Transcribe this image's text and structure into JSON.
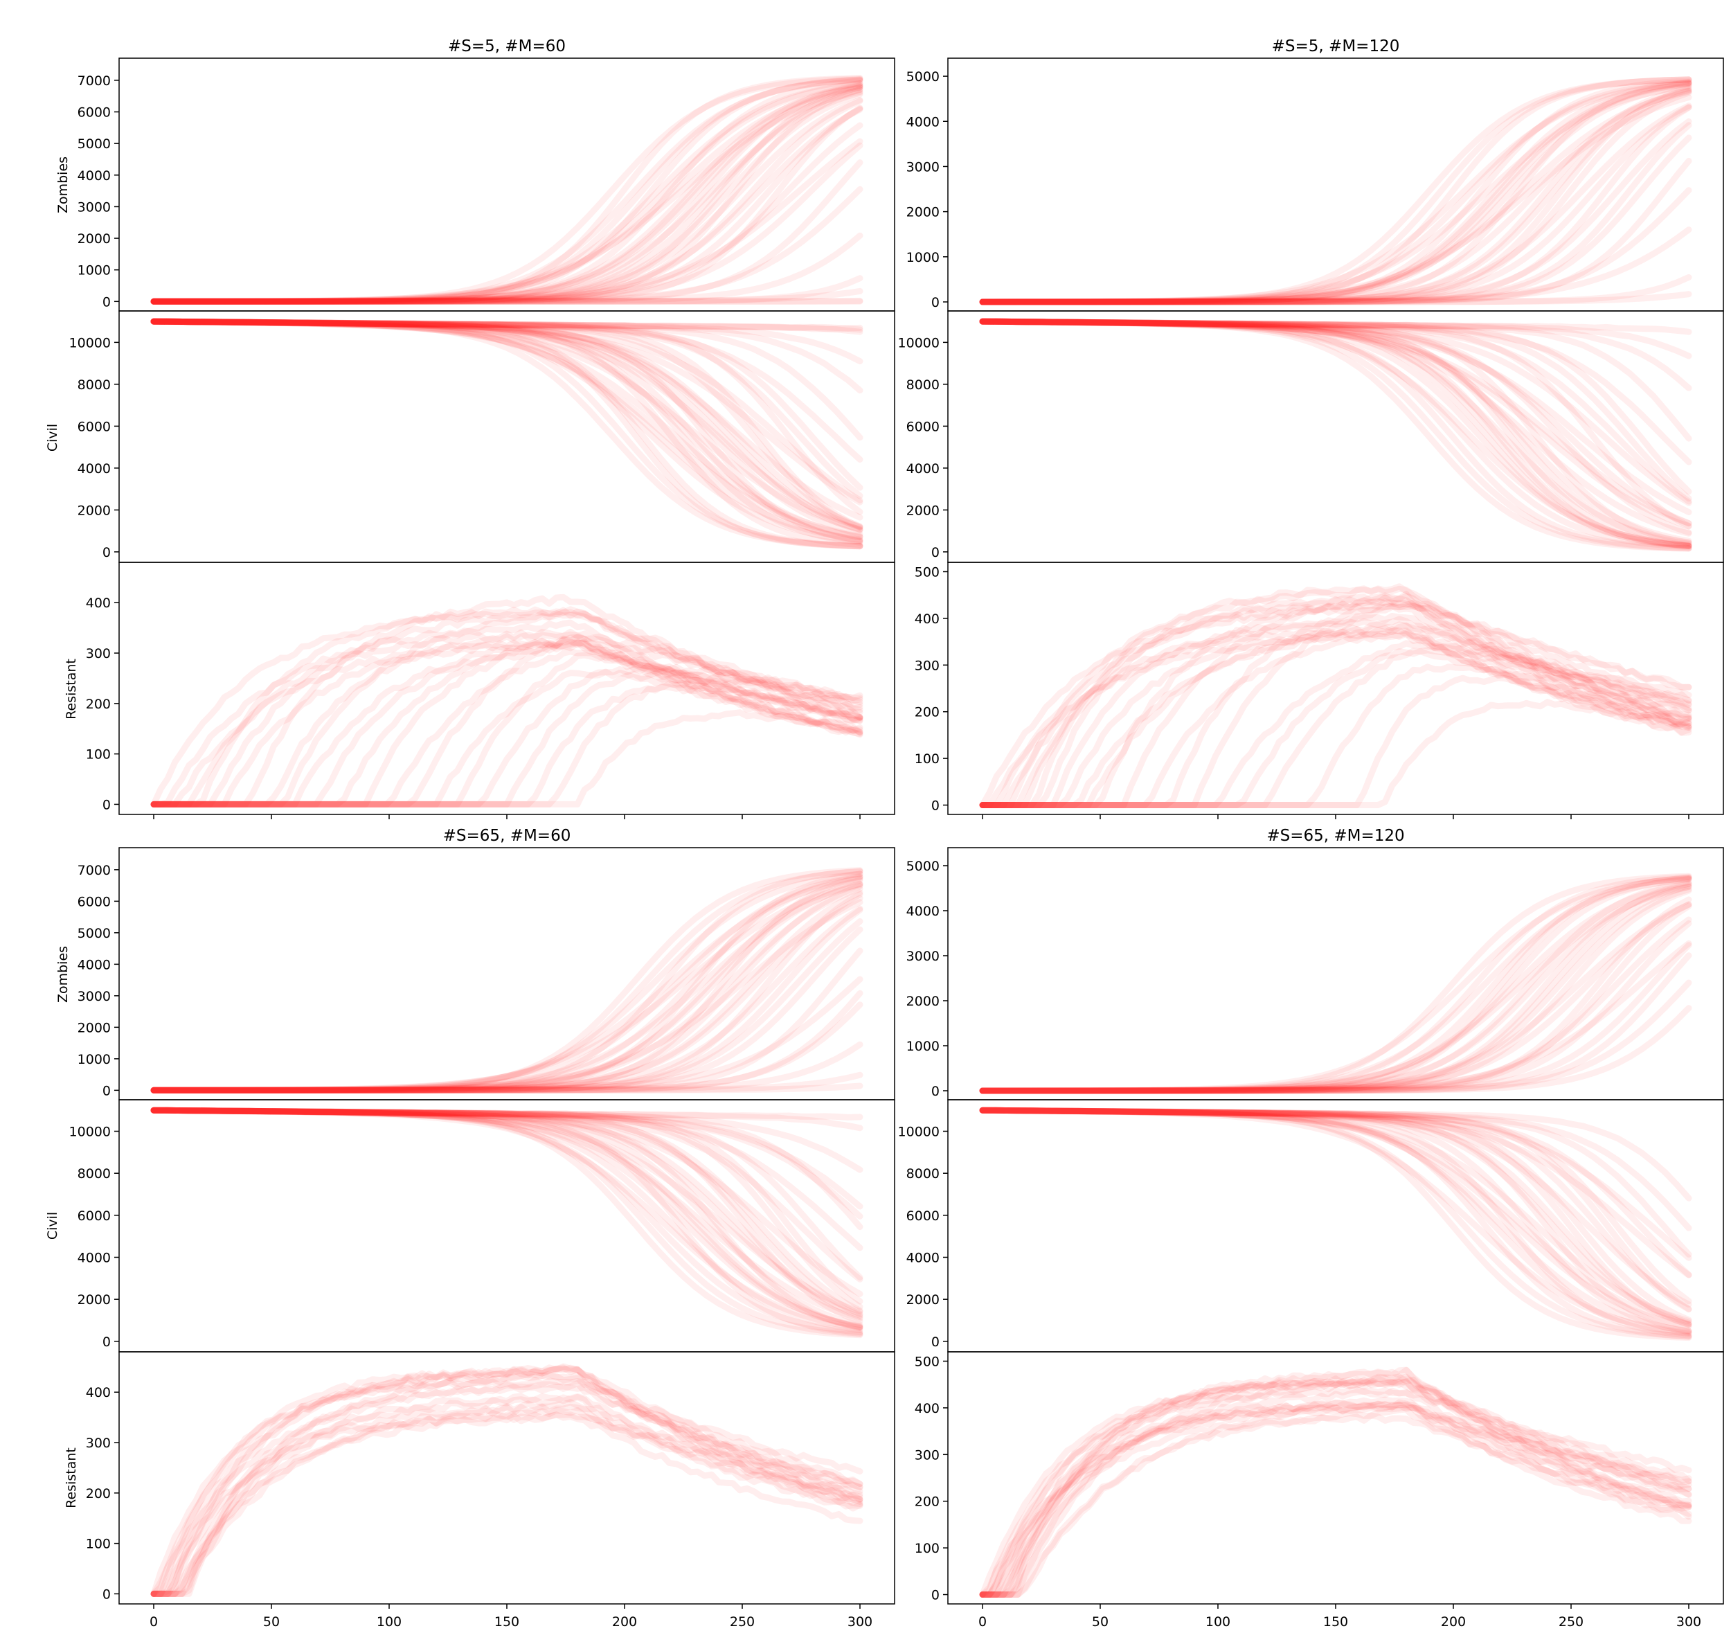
{
  "chart_data": [
    {
      "type": "line",
      "title": "#S=5, #M=60",
      "series_color": "#ff2020",
      "x_range": [
        0,
        300
      ],
      "x_ticks": [
        0,
        50,
        100,
        150,
        200,
        250,
        300
      ],
      "grid": false,
      "legend": "none",
      "panels": [
        {
          "ylabel": "Zombies",
          "ylim": [
            -300,
            7700
          ],
          "y_ticks": [
            0,
            1000,
            2000,
            3000,
            4000,
            5000,
            6000,
            7000
          ],
          "curve_kind": "rise",
          "plateau": 7100,
          "midpoints": [
            195,
            200,
            205,
            208,
            212,
            215,
            218,
            220,
            222,
            225,
            228,
            230,
            232,
            235,
            238,
            240,
            242,
            245,
            248,
            250,
            255,
            258,
            262,
            266,
            270,
            275,
            280,
            290,
            300,
            320,
            340,
            380,
            420,
            460
          ]
        },
        {
          "ylabel": "Civil",
          "ylim": [
            -500,
            11500
          ],
          "y_ticks": [
            0,
            2000,
            4000,
            6000,
            8000,
            10000
          ],
          "curve_kind": "fall",
          "start": 11000,
          "floor": 200,
          "midpoints": [
            195,
            200,
            205,
            208,
            212,
            215,
            218,
            220,
            222,
            225,
            228,
            230,
            232,
            235,
            238,
            240,
            242,
            245,
            248,
            250,
            255,
            258,
            262,
            266,
            270,
            275,
            280,
            290,
            300,
            320,
            340,
            380,
            420,
            460
          ]
        },
        {
          "ylabel": "Resistant",
          "ylim": [
            -20,
            480
          ],
          "y_ticks": [
            0,
            100,
            200,
            300,
            400
          ],
          "curve_kind": "hump",
          "peak": 380,
          "onsets": [
            0,
            5,
            10,
            15,
            20,
            25,
            30,
            40,
            50,
            55,
            60,
            70,
            80,
            90,
            100,
            110,
            120,
            130,
            140,
            150,
            160,
            170,
            180
          ]
        }
      ]
    },
    {
      "type": "line",
      "title": "#S=5, #M=120",
      "series_color": "#ff2020",
      "x_range": [
        0,
        300
      ],
      "x_ticks": [
        0,
        50,
        100,
        150,
        200,
        250,
        300
      ],
      "grid": false,
      "legend": "none",
      "panels": [
        {
          "ylabel": "",
          "ylim": [
            -200,
            5400
          ],
          "y_ticks": [
            0,
            1000,
            2000,
            3000,
            4000,
            5000
          ],
          "curve_kind": "rise",
          "plateau": 4950,
          "midpoints": [
            190,
            195,
            200,
            205,
            208,
            212,
            215,
            218,
            220,
            222,
            225,
            228,
            230,
            233,
            236,
            240,
            243,
            246,
            250,
            255,
            260,
            265,
            270,
            275,
            280,
            290,
            300,
            320,
            340,
            380
          ]
        },
        {
          "ylabel": "",
          "ylim": [
            -500,
            11500
          ],
          "y_ticks": [
            0,
            2000,
            4000,
            6000,
            8000,
            10000
          ],
          "curve_kind": "fall",
          "start": 11000,
          "floor": 100,
          "midpoints": [
            190,
            195,
            200,
            205,
            208,
            212,
            215,
            218,
            220,
            222,
            225,
            228,
            230,
            233,
            236,
            240,
            243,
            246,
            250,
            255,
            260,
            265,
            270,
            275,
            280,
            290,
            300,
            320,
            340,
            380
          ]
        },
        {
          "ylabel": "",
          "ylim": [
            -20,
            520
          ],
          "y_ticks": [
            0,
            100,
            200,
            300,
            400,
            500
          ],
          "curve_kind": "hump",
          "peak": 430,
          "onsets": [
            0,
            3,
            6,
            9,
            12,
            15,
            18,
            22,
            26,
            30,
            35,
            40,
            45,
            50,
            60,
            70,
            80,
            90,
            100,
            110,
            120,
            140,
            160,
            170
          ]
        }
      ]
    },
    {
      "type": "line",
      "title": "#S=65, #M=60",
      "series_color": "#ff2020",
      "x_range": [
        0,
        300
      ],
      "x_ticks": [
        0,
        50,
        100,
        150,
        200,
        250,
        300
      ],
      "grid": false,
      "legend": "none",
      "panels": [
        {
          "ylabel": "Zombies",
          "ylim": [
            -300,
            7700
          ],
          "y_ticks": [
            0,
            1000,
            2000,
            3000,
            4000,
            5000,
            6000,
            7000
          ],
          "curve_kind": "rise",
          "plateau": 7050,
          "midpoints": [
            205,
            210,
            214,
            218,
            221,
            224,
            227,
            230,
            232,
            235,
            238,
            240,
            243,
            246,
            249,
            252,
            255,
            258,
            262,
            266,
            270,
            275,
            280,
            290,
            300,
            305,
            310,
            330,
            360,
            400
          ]
        },
        {
          "ylabel": "Civil",
          "ylim": [
            -500,
            11500
          ],
          "y_ticks": [
            0,
            2000,
            4000,
            6000,
            8000,
            10000
          ],
          "curve_kind": "fall",
          "start": 11000,
          "floor": 200,
          "midpoints": [
            205,
            210,
            214,
            218,
            221,
            224,
            227,
            230,
            232,
            235,
            238,
            240,
            243,
            246,
            249,
            252,
            255,
            258,
            262,
            266,
            270,
            275,
            280,
            290,
            300,
            305,
            310,
            330,
            360,
            400
          ]
        },
        {
          "ylabel": "Resistant",
          "ylim": [
            -20,
            480
          ],
          "y_ticks": [
            0,
            100,
            200,
            300,
            400
          ],
          "curve_kind": "hump",
          "peak": 410,
          "onsets": [
            0,
            1,
            2,
            3,
            4,
            5,
            6,
            7,
            8,
            9,
            10,
            11,
            12,
            13,
            14,
            15
          ]
        }
      ]
    },
    {
      "type": "line",
      "title": "#S=65, #M=120",
      "series_color": "#ff2020",
      "x_range": [
        0,
        300
      ],
      "x_ticks": [
        0,
        50,
        100,
        150,
        200,
        250,
        300
      ],
      "grid": false,
      "legend": "none",
      "panels": [
        {
          "ylabel": "",
          "ylim": [
            -200,
            5400
          ],
          "y_ticks": [
            0,
            1000,
            2000,
            3000,
            4000,
            5000
          ],
          "curve_kind": "rise",
          "plateau": 4800,
          "midpoints": [
            200,
            205,
            210,
            214,
            218,
            221,
            224,
            227,
            230,
            233,
            236,
            240,
            243,
            246,
            250,
            254,
            258,
            262,
            266,
            270,
            275,
            280,
            285,
            290,
            300,
            310
          ]
        },
        {
          "ylabel": "",
          "ylim": [
            -500,
            11500
          ],
          "y_ticks": [
            0,
            2000,
            4000,
            6000,
            8000,
            10000
          ],
          "curve_kind": "fall",
          "start": 11000,
          "floor": 100,
          "midpoints": [
            200,
            205,
            210,
            214,
            218,
            221,
            224,
            227,
            230,
            233,
            236,
            240,
            243,
            246,
            250,
            254,
            258,
            262,
            266,
            270,
            275,
            280,
            285,
            290,
            300,
            310
          ]
        },
        {
          "ylabel": "",
          "ylim": [
            -20,
            520
          ],
          "y_ticks": [
            0,
            100,
            200,
            300,
            400,
            500
          ],
          "curve_kind": "hump",
          "peak": 440,
          "onsets": [
            0,
            1,
            2,
            3,
            4,
            5,
            6,
            7,
            8,
            9,
            10,
            11,
            12,
            13,
            14,
            15,
            16,
            17
          ]
        }
      ]
    }
  ]
}
